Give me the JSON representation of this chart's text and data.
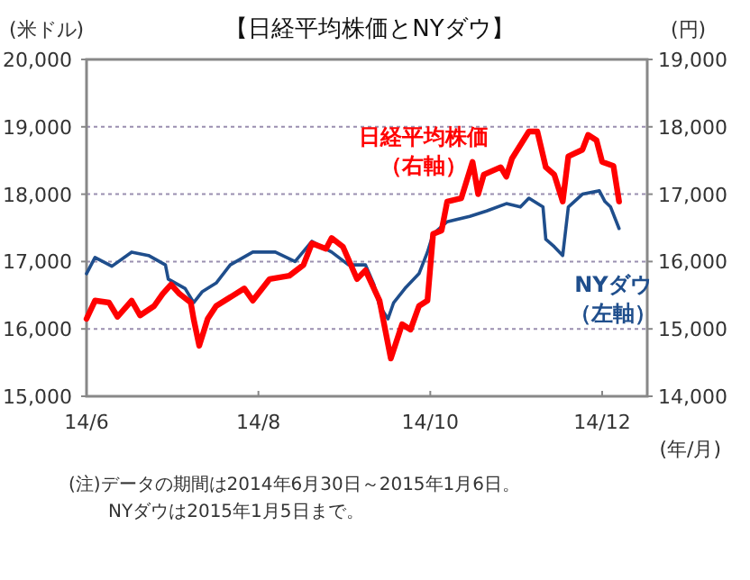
{
  "chart_data": {
    "type": "line",
    "title": "【日経平均株価とNYダウ】",
    "xlabel": "(年/月)",
    "ylabel": "(米ドル)",
    "y2label": "(円)",
    "xlim": [
      "2014-06-01",
      "2014-12-17"
    ],
    "xticks": [
      {
        "value": "2014-06-01",
        "label": "14/6"
      },
      {
        "value": "2014-08-01",
        "label": "14/8"
      },
      {
        "value": "2014-10-01",
        "label": "14/10"
      },
      {
        "value": "2014-12-01",
        "label": "14/12"
      }
    ],
    "ylim": [
      15000,
      20000
    ],
    "yticks": [
      {
        "value": 15000,
        "label": "15,000"
      },
      {
        "value": 16000,
        "label": "16,000"
      },
      {
        "value": 17000,
        "label": "17,000"
      },
      {
        "value": 18000,
        "label": "18,000"
      },
      {
        "value": 19000,
        "label": "19,000"
      },
      {
        "value": 20000,
        "label": "20,000"
      }
    ],
    "y2lim": [
      14000,
      19000
    ],
    "y2ticks": [
      {
        "value": 14000,
        "label": "14,000"
      },
      {
        "value": 15000,
        "label": "15,000"
      },
      {
        "value": 16000,
        "label": "16,000"
      },
      {
        "value": 17000,
        "label": "17,000"
      },
      {
        "value": 18000,
        "label": "18,000"
      },
      {
        "value": 19000,
        "label": "19,000"
      }
    ],
    "grid": "y",
    "series": [
      {
        "name": "NYダウ（左軸）",
        "color": "#1f4e8c",
        "axis": "y",
        "x": [
          "2014-06-01",
          "2014-06-04",
          "2014-06-10",
          "2014-06-17",
          "2014-06-23",
          "2014-06-29",
          "2014-06-30",
          "2014-07-06",
          "2014-07-09",
          "2014-07-12",
          "2014-07-17",
          "2014-07-22",
          "2014-07-30",
          "2014-08-07",
          "2014-08-14",
          "2014-08-20",
          "2014-08-27",
          "2014-09-02",
          "2014-09-08",
          "2014-09-11",
          "2014-09-13",
          "2014-09-16",
          "2014-09-18",
          "2014-09-22",
          "2014-09-27",
          "2014-09-30",
          "2014-10-02",
          "2014-10-07",
          "2014-10-15",
          "2014-10-21",
          "2014-10-28",
          "2014-11-02",
          "2014-11-05",
          "2014-11-10",
          "2014-11-11",
          "2014-11-14",
          "2014-11-17",
          "2014-11-19",
          "2014-11-24",
          "2014-11-30",
          "2014-12-02",
          "2014-12-04",
          "2014-12-07"
        ],
        "values": [
          16820,
          17060,
          16930,
          17140,
          17090,
          16950,
          16740,
          16600,
          16390,
          16550,
          16680,
          16950,
          17140,
          17140,
          17000,
          17300,
          17140,
          16950,
          16950,
          16660,
          16340,
          16150,
          16390,
          16600,
          16820,
          17140,
          17410,
          17590,
          17670,
          17750,
          17860,
          17810,
          17940,
          17810,
          17330,
          17220,
          17090,
          17810,
          18000,
          18050,
          17890,
          17810,
          17490
        ]
      },
      {
        "name": "日経平均株価（右軸）",
        "color": "#ff0000",
        "axis": "y2",
        "x": [
          "2014-06-01",
          "2014-06-04",
          "2014-06-09",
          "2014-06-12",
          "2014-06-17",
          "2014-06-20",
          "2014-06-25",
          "2014-06-28",
          "2014-07-01",
          "2014-07-04",
          "2014-07-08",
          "2014-07-09",
          "2014-07-11",
          "2014-07-14",
          "2014-07-17",
          "2014-07-22",
          "2014-07-27",
          "2014-07-30",
          "2014-08-05",
          "2014-08-12",
          "2014-08-17",
          "2014-08-20",
          "2014-08-25",
          "2014-08-27",
          "2014-08-31",
          "2014-09-05",
          "2014-09-08",
          "2014-09-13",
          "2014-09-17",
          "2014-09-21",
          "2014-09-24",
          "2014-09-27",
          "2014-09-30",
          "2014-10-02",
          "2014-10-05",
          "2014-10-07",
          "2014-10-12",
          "2014-10-16",
          "2014-10-18",
          "2014-10-20",
          "2014-10-26",
          "2014-10-28",
          "2014-10-30",
          "2014-11-05",
          "2014-11-08",
          "2014-11-11",
          "2014-11-14",
          "2014-11-17",
          "2014-11-19",
          "2014-11-24",
          "2014-11-26",
          "2014-11-29",
          "2014-12-01",
          "2014-12-05",
          "2014-12-07"
        ],
        "values": [
          15150,
          15420,
          15390,
          15180,
          15420,
          15200,
          15340,
          15520,
          15660,
          15520,
          15390,
          15150,
          14750,
          15150,
          15340,
          15470,
          15600,
          15420,
          15740,
          15790,
          15950,
          16270,
          16190,
          16350,
          16220,
          15740,
          15870,
          15420,
          14560,
          15070,
          14990,
          15340,
          15420,
          16410,
          16460,
          16890,
          16940,
          17480,
          17000,
          17290,
          17400,
          17260,
          17530,
          17930,
          17930,
          17400,
          17290,
          16890,
          17560,
          17660,
          17880,
          17800,
          17480,
          17420,
          16890
        ]
      }
    ],
    "annotations": [
      "(注)データの期間は2014年6月30日～2015年1月6日。",
      "NYダウは2015年1月5日まで。"
    ]
  }
}
